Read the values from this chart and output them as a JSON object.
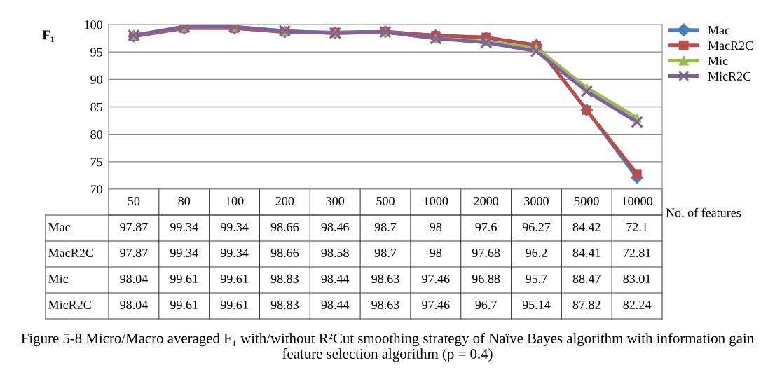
{
  "chart_data": {
    "type": "line",
    "ylabel": "F₁",
    "xlabel": "No. of features",
    "categories": [
      "50",
      "80",
      "100",
      "200",
      "300",
      "500",
      "1000",
      "2000",
      "3000",
      "5000",
      "10000"
    ],
    "series": [
      {
        "name": "Mac",
        "color": "#4a7ebb",
        "marker": "diamond",
        "values": [
          97.87,
          99.34,
          99.34,
          98.66,
          98.46,
          98.7,
          98,
          97.6,
          96.27,
          84.42,
          72.1
        ]
      },
      {
        "name": "MacR2C",
        "color": "#be4b48",
        "marker": "square",
        "values": [
          97.87,
          99.34,
          99.34,
          98.66,
          98.58,
          98.7,
          98,
          97.68,
          96.2,
          84.41,
          72.81
        ]
      },
      {
        "name": "Mic",
        "color": "#98b954",
        "marker": "triangle",
        "values": [
          98.04,
          99.61,
          99.61,
          98.83,
          98.44,
          98.63,
          97.46,
          96.88,
          95.7,
          88.47,
          83.01
        ]
      },
      {
        "name": "MicR2C",
        "color": "#7d60a0",
        "marker": "cross",
        "values": [
          98.04,
          99.61,
          99.61,
          98.83,
          98.44,
          98.63,
          97.46,
          96.7,
          95.14,
          87.82,
          82.24
        ]
      }
    ],
    "ylim": [
      70,
      100
    ],
    "yticks": [
      70,
      75,
      80,
      85,
      90,
      95,
      100
    ],
    "grid": "y",
    "legend": "top right",
    "tick_labels": "y",
    "data_labels": true,
    "annotations": [
      "Figure 5-8 Micro/Macro averaged F₁ with/without R²Cut smoothing strategy of Naïve Bayes algorithm with information gain feature selection algorithm (ρ = 0.4)"
    ]
  }
}
